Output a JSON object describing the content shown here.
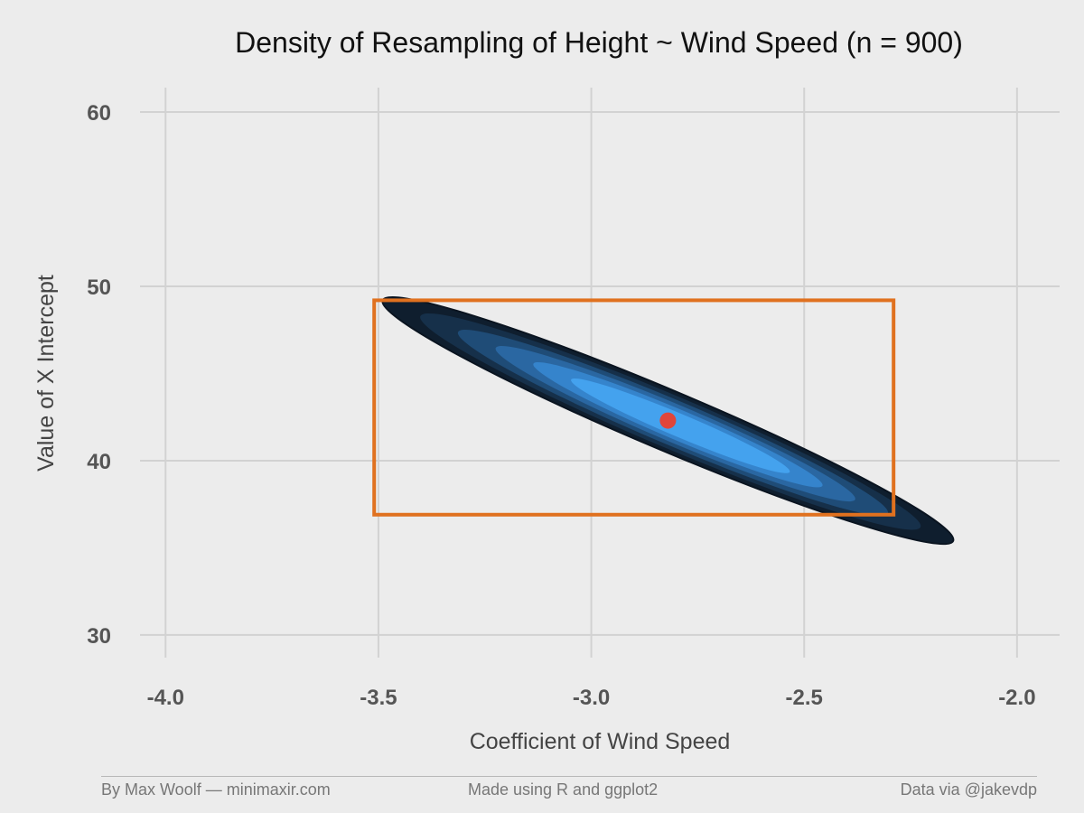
{
  "chart_data": {
    "type": "contour_density",
    "title": "Density of Resampling of Height ~ Wind Speed (n = 900)",
    "xlabel": "Coefficient of Wind Speed",
    "ylabel": "Value of X Intercept",
    "xlim": [
      -4.06,
      -1.9
    ],
    "ylim": [
      28.7,
      61.4
    ],
    "xticks": [
      -4.0,
      -3.5,
      -3.0,
      -2.5,
      -2.0
    ],
    "xtick_labels": [
      "-4.0",
      "-3.5",
      "-3.0",
      "-2.5",
      "-2.0"
    ],
    "yticks": [
      30,
      40,
      50,
      60
    ],
    "ytick_labels": [
      "30",
      "40",
      "50",
      "60"
    ],
    "grid": true,
    "density": {
      "center": {
        "x": -2.82,
        "y": 42.3
      },
      "slope": -10.3,
      "x_extent": [
        -3.55,
        -2.21
      ],
      "levels": 6,
      "colors": [
        "#0f1e2e",
        "#16304a",
        "#1f4c77",
        "#2a67a2",
        "#3584cc",
        "#44a2ee"
      ]
    },
    "point_estimate": {
      "x": -2.82,
      "y": 42.3,
      "color": "#e0453a"
    },
    "interval_box": {
      "xmin": -3.51,
      "xmax": -2.29,
      "ymin": 36.9,
      "ymax": 49.2,
      "color": "#e0711f"
    }
  },
  "footer": {
    "left": "By Max Woolf — minimaxir.com",
    "center": "Made using R and ggplot2",
    "right": "Data via @jakevdp"
  }
}
